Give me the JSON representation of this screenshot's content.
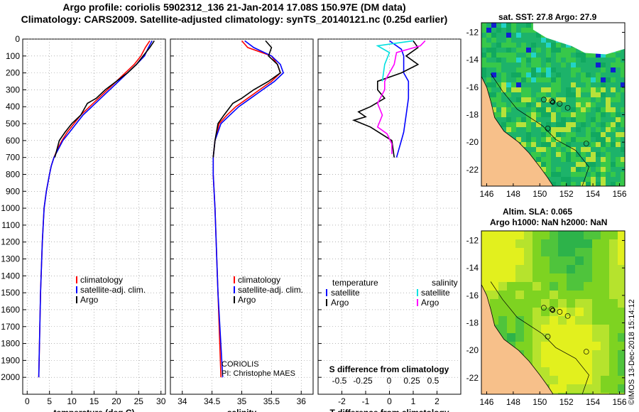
{
  "title_line1": "Argo profile: coriolis 5902312_136 21-Jan-2014 17.08S 150.97E (DM data)",
  "title_line2": "Climatology: CARS2009. Satellite-adjusted climatology: synTS_20140121.nc (0.25d earlier)",
  "credit": "©IMOS 13-Dec-2018 15:14:12",
  "colors": {
    "climatology": "#ff0000",
    "satellite": "#0000ff",
    "argo": "#000000",
    "sat_salinity": "#00e0e0",
    "argo_salinity": "#ff00ff",
    "land": "#f7c08a"
  },
  "chart_data": [
    {
      "type": "line",
      "id": "temperature",
      "xlabel": "temperature (deg C)",
      "xlim": [
        -1,
        31
      ],
      "xticks": [
        0,
        5,
        10,
        15,
        20,
        25,
        30
      ],
      "ylim": [
        2100,
        0
      ],
      "yticks": [
        0,
        100,
        200,
        300,
        400,
        500,
        600,
        700,
        800,
        900,
        1000,
        1100,
        1200,
        1300,
        1400,
        1500,
        1600,
        1700,
        1800,
        1900,
        2000
      ],
      "legend": {
        "position": "lower-center",
        "entries": [
          "climatology",
          "satellite-adj. clim.",
          "Argo"
        ]
      },
      "series": [
        {
          "name": "climatology",
          "color": "#ff0000",
          "points": [
            [
              27.5,
              10
            ],
            [
              26.5,
              50
            ],
            [
              25.5,
              100
            ],
            [
              24,
              150
            ],
            [
              22,
              200
            ],
            [
              20,
              250
            ],
            [
              18,
              300
            ],
            [
              16,
              350
            ],
            [
              14,
              400
            ],
            [
              12,
              450
            ],
            [
              10.5,
              500
            ],
            [
              9,
              550
            ],
            [
              7.8,
              600
            ],
            [
              6.8,
              650
            ],
            [
              6,
              700
            ],
            [
              5.4,
              750
            ],
            [
              5,
              800
            ],
            [
              4.3,
              900
            ],
            [
              3.8,
              1000
            ],
            [
              3.4,
              1200
            ],
            [
              3.0,
              1500
            ],
            [
              2.6,
              2000
            ]
          ]
        },
        {
          "name": "satellite-adj. clim.",
          "color": "#0000ff",
          "points": [
            [
              28,
              10
            ],
            [
              27.2,
              50
            ],
            [
              26.3,
              100
            ],
            [
              24.5,
              150
            ],
            [
              22.5,
              200
            ],
            [
              20.5,
              250
            ],
            [
              18.5,
              300
            ],
            [
              16.5,
              350
            ],
            [
              14.5,
              400
            ],
            [
              12.5,
              450
            ],
            [
              11,
              500
            ],
            [
              9.5,
              550
            ],
            [
              8,
              600
            ],
            [
              7,
              650
            ],
            [
              6,
              700
            ],
            [
              5.4,
              750
            ],
            [
              5,
              800
            ],
            [
              4.3,
              900
            ],
            [
              3.8,
              1000
            ],
            [
              3.4,
              1200
            ],
            [
              3.0,
              1500
            ],
            [
              2.6,
              2000
            ]
          ]
        },
        {
          "name": "Argo",
          "color": "#000000",
          "points": [
            [
              28.5,
              10
            ],
            [
              27.5,
              50
            ],
            [
              26,
              100
            ],
            [
              24.5,
              150
            ],
            [
              22.5,
              200
            ],
            [
              20,
              250
            ],
            [
              17.5,
              300
            ],
            [
              15.5,
              350
            ],
            [
              13.5,
              380
            ],
            [
              12,
              450
            ],
            [
              10,
              500
            ],
            [
              8.5,
              550
            ],
            [
              7.2,
              600
            ],
            [
              6.2,
              700
            ]
          ]
        }
      ]
    },
    {
      "type": "line",
      "id": "salinity",
      "xlabel": "salinity",
      "xlim": [
        33.8,
        36.2
      ],
      "xticks": [
        34,
        34.5,
        35,
        35.5,
        36
      ],
      "ylim": [
        2100,
        0
      ],
      "legend": {
        "position": "lower-center",
        "entries": [
          "climatology",
          "satellite-adj. clim.",
          "Argo"
        ]
      },
      "annotations": [
        "CORIOLIS",
        "PI: Christophe MAES"
      ],
      "series": [
        {
          "name": "climatology",
          "color": "#ff0000",
          "points": [
            [
              35.0,
              10
            ],
            [
              35.1,
              50
            ],
            [
              35.5,
              100
            ],
            [
              35.6,
              150
            ],
            [
              35.65,
              200
            ],
            [
              35.5,
              250
            ],
            [
              35.3,
              300
            ],
            [
              35.1,
              350
            ],
            [
              34.9,
              400
            ],
            [
              34.75,
              450
            ],
            [
              34.62,
              500
            ],
            [
              34.55,
              600
            ],
            [
              34.52,
              700
            ],
            [
              34.52,
              800
            ],
            [
              34.55,
              1000
            ],
            [
              34.6,
              1500
            ],
            [
              34.65,
              2000
            ]
          ]
        },
        {
          "name": "satellite-adj. clim.",
          "color": "#0000ff",
          "points": [
            [
              35.05,
              10
            ],
            [
              35.2,
              50
            ],
            [
              35.5,
              100
            ],
            [
              35.65,
              150
            ],
            [
              35.7,
              200
            ],
            [
              35.55,
              250
            ],
            [
              35.35,
              300
            ],
            [
              35.15,
              350
            ],
            [
              34.95,
              400
            ],
            [
              34.8,
              450
            ],
            [
              34.65,
              500
            ],
            [
              34.55,
              600
            ],
            [
              34.52,
              700
            ],
            [
              34.52,
              800
            ],
            [
              34.55,
              1000
            ],
            [
              34.6,
              1500
            ],
            [
              34.68,
              2000
            ]
          ]
        },
        {
          "name": "Argo",
          "color": "#000000",
          "points": [
            [
              35.4,
              10
            ],
            [
              35.5,
              50
            ],
            [
              35.45,
              100
            ],
            [
              35.6,
              150
            ],
            [
              35.65,
              200
            ],
            [
              35.45,
              250
            ],
            [
              35.2,
              300
            ],
            [
              35.0,
              350
            ],
            [
              34.85,
              380
            ],
            [
              34.7,
              450
            ],
            [
              34.6,
              500
            ],
            [
              34.55,
              600
            ],
            [
              34.52,
              700
            ]
          ]
        }
      ]
    },
    {
      "type": "line",
      "id": "differences",
      "xlabel": "T difference from climatology",
      "x2label": "S difference from climatology",
      "xlim": [
        -3,
        3
      ],
      "xticks": [
        -2,
        -1,
        0,
        1,
        2
      ],
      "xtick_labels": [
        "-2",
        "-1",
        "0",
        "1",
        "2"
      ],
      "x2ticks": [
        "-0.5",
        "-0.25",
        "0",
        "0.25",
        "0.5"
      ],
      "ylim": [
        2100,
        0
      ],
      "legend": {
        "position": "lower-center",
        "left_heading": "temperature",
        "right_heading": "salinity",
        "left_entries": [
          "satellite",
          "Argo"
        ],
        "right_entries": [
          "satellite",
          "Argo"
        ]
      },
      "series": [
        {
          "name": "temperature satellite",
          "color": "#0000ff",
          "points": [
            [
              0,
              10
            ],
            [
              0.2,
              30
            ],
            [
              0.5,
              60
            ],
            [
              0.6,
              100
            ],
            [
              0.6,
              200
            ],
            [
              0.8,
              250
            ],
            [
              0.8,
              350
            ],
            [
              0.7,
              450
            ],
            [
              0.6,
              550
            ],
            [
              0.5,
              600
            ],
            [
              0.3,
              700
            ]
          ]
        },
        {
          "name": "temperature Argo",
          "color": "#000000",
          "points": [
            [
              1,
              10
            ],
            [
              1.2,
              50
            ],
            [
              0.7,
              100
            ],
            [
              1.2,
              150
            ],
            [
              0.5,
              200
            ],
            [
              -0.5,
              250
            ],
            [
              -0.5,
              300
            ],
            [
              -0.2,
              350
            ],
            [
              -0.8,
              400
            ],
            [
              -1.3,
              430
            ],
            [
              -1.0,
              460
            ],
            [
              -1.5,
              480
            ],
            [
              -0.8,
              520
            ],
            [
              0.1,
              600
            ],
            [
              0.2,
              700
            ]
          ]
        },
        {
          "name": "salinity satellite",
          "color": "#00e0e0",
          "points": [
            [
              1,
              10
            ],
            [
              -0.5,
              40
            ],
            [
              0,
              80
            ],
            [
              -0.2,
              150
            ],
            [
              -0.3,
              250
            ]
          ]
        },
        {
          "name": "salinity Argo",
          "color": "#ff00ff",
          "points": [
            [
              1.5,
              10
            ],
            [
              1.3,
              40
            ],
            [
              0.3,
              80
            ],
            [
              0.2,
              150
            ],
            [
              -0.2,
              250
            ],
            [
              -0.2,
              300
            ],
            [
              -0.5,
              380
            ],
            [
              -0.3,
              450
            ],
            [
              -0.5,
              520
            ],
            [
              -0.1,
              560
            ],
            [
              0.1,
              620
            ],
            [
              0.1,
              680
            ]
          ]
        }
      ]
    },
    {
      "type": "heatmap",
      "id": "sst_map",
      "title": "sat. SST: 27.8 Argo: 27.9",
      "xticks": [
        146,
        148,
        150,
        152,
        154,
        156
      ],
      "yticks": [
        -12,
        -14,
        -16,
        -18,
        -20,
        -22
      ],
      "xlim": [
        145.6,
        156.4
      ],
      "ylim": [
        -23.2,
        -11.3
      ],
      "argo_position": [
        150.97,
        -17.08
      ]
    },
    {
      "type": "heatmap",
      "id": "sla_map",
      "title_line1": "Altim. SLA: 0.065",
      "title_line2": "Argo h1000: NaN h2000: NaN",
      "xticks": [
        146,
        148,
        150,
        152,
        154,
        156
      ],
      "yticks": [
        -12,
        -14,
        -16,
        -18,
        -20,
        -22
      ],
      "xlim": [
        145.6,
        156.4
      ],
      "ylim": [
        -23.2,
        -11.3
      ],
      "argo_position": [
        150.97,
        -17.08
      ]
    }
  ]
}
